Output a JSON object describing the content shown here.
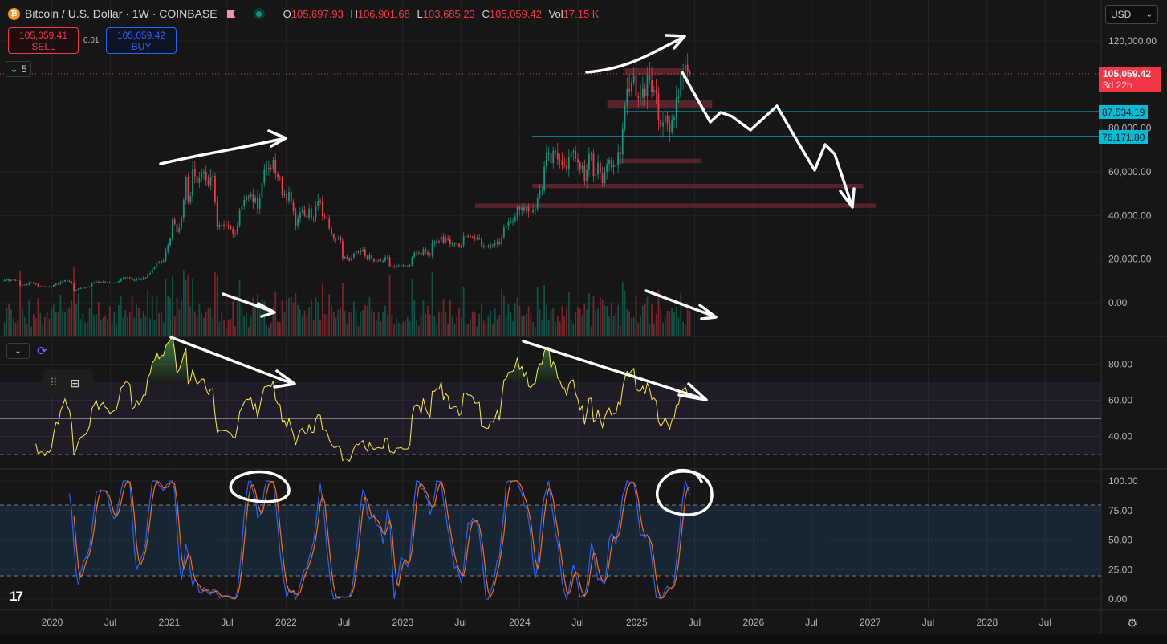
{
  "header": {
    "symbol_icon": "bitcoin-icon",
    "title": "Bitcoin / U.S. Dollar · 1W · COINBASE",
    "ohlc": {
      "o_label": "O",
      "open": "105,697.93",
      "h_label": "H",
      "high": "106,901.68",
      "l_label": "L",
      "low": "103,685.23",
      "c_label": "C",
      "close": "105,059.42",
      "vol_label": "Vol",
      "volume": "17.15 K"
    }
  },
  "trade": {
    "sell_price": "105,059.41",
    "sell_label": "SELL",
    "spread": "0.01",
    "buy_price": "105,059.42",
    "buy_label": "BUY"
  },
  "indicators_collapsed_count": "5",
  "currency": "USD",
  "last_price": {
    "value": "105,059.42",
    "countdown": "3d 22h"
  },
  "level_tags": [
    "87,534.19",
    "76,171.80"
  ],
  "colors": {
    "up": "#089981",
    "down": "#f23645",
    "rsi": "#ffeb3b",
    "stoch_k": "#2962ff",
    "stoch_d": "#ff6d00",
    "level_line": "#00bcd4",
    "zone": "#8b2f3a",
    "background": "#161616"
  },
  "chart_data": {
    "type": "candlestick",
    "interval": "1W",
    "price_axis": {
      "ticks": [
        "120,000.00",
        "80,000.00",
        "60,000.00",
        "40,000.00",
        "20,000.00",
        "0.00"
      ],
      "tick_values": [
        120000,
        80000,
        60000,
        40000,
        20000,
        0
      ],
      "range": [
        0,
        120000
      ]
    },
    "time_axis": {
      "ticks": [
        "2020",
        "Jul",
        "2021",
        "Jul",
        "2022",
        "Jul",
        "2023",
        "Jul",
        "2024",
        "Jul",
        "2025",
        "Jul",
        "2026",
        "Jul",
        "2027",
        "Jul",
        "2028",
        "Jul"
      ],
      "tick_dates": [
        "2020-01-01",
        "2020-07-01",
        "2021-01-01",
        "2021-07-01",
        "2022-01-01",
        "2022-07-01",
        "2023-01-01",
        "2023-07-01",
        "2024-01-01",
        "2024-07-01",
        "2025-01-01",
        "2025-07-01",
        "2026-01-01",
        "2026-07-01",
        "2027-01-01",
        "2027-07-01",
        "2028-01-01",
        "2028-07-01"
      ]
    },
    "weekly_close_thousands": [
      10.3,
      10.9,
      10.1,
      10.4,
      10.5,
      10.3,
      10.0,
      8.0,
      8.2,
      8.3,
      8.2,
      9.2,
      9.2,
      8.8,
      8.5,
      7.4,
      7.5,
      7.5,
      7.1,
      7.3,
      7.2,
      7.4,
      8.1,
      8.7,
      8.6,
      9.4,
      9.8,
      10.3,
      9.9,
      9.7,
      8.8,
      5.4,
      5.8,
      6.4,
      6.7,
      6.8,
      6.9,
      7.1,
      7.5,
      8.9,
      9.3,
      9.7,
      9.1,
      9.5,
      9.7,
      9.4,
      9.3,
      9.0,
      9.1,
      9.2,
      9.3,
      9.9,
      11.0,
      11.2,
      11.6,
      11.6,
      11.5,
      10.3,
      10.4,
      10.9,
      10.7,
      10.9,
      11.4,
      11.4,
      13.1,
      13.6,
      15.5,
      16.1,
      18.6,
      18.2,
      19.2,
      19.2,
      23.8,
      26.5,
      29.4,
      38.2,
      36.0,
      32.3,
      34.3,
      38.9,
      47.2,
      57.5,
      46.3,
      48.9,
      61.2,
      58.0,
      55.0,
      57.1,
      59.9,
      60.0,
      56.2,
      54.0,
      57.8,
      58.2,
      46.4,
      34.7,
      35.7,
      35.8,
      35.5,
      35.5,
      34.7,
      34.0,
      31.8,
      31.5,
      35.4,
      42.2,
      44.6,
      47.1,
      48.9,
      48.8,
      49.9,
      46.0,
      48.3,
      43.2,
      48.2,
      54.9,
      60.9,
      61.3,
      61.8,
      61.5,
      65.5,
      59.0,
      57.3,
      57.0,
      49.4,
      50.1,
      46.7,
      50.8,
      46.2,
      42.0,
      35.1,
      38.5,
      41.5,
      42.4,
      40.0,
      39.1,
      43.2,
      39.0,
      38.8,
      44.5,
      46.8,
      46.4,
      39.7,
      39.4,
      38.5,
      34.1,
      31.3,
      29.4,
      29.5,
      29.9,
      28.4,
      20.5,
      21.0,
      20.5,
      19.3,
      20.8,
      22.5,
      23.6,
      23.3,
      23.9,
      24.3,
      21.5,
      20.0,
      21.8,
      20.1,
      19.0,
      19.3,
      19.4,
      19.2,
      19.2,
      20.8,
      20.8,
      16.8,
      16.7,
      16.4,
      17.1,
      17.1,
      17.2,
      16.8,
      16.8,
      16.8,
      17.2,
      20.9,
      22.8,
      23.0,
      22.9,
      21.8,
      24.6,
      23.2,
      22.3,
      21.8,
      27.5,
      27.5,
      28.3,
      28.2,
      30.3,
      27.6,
      29.3,
      28.9,
      26.8,
      26.9,
      27.2,
      27.1,
      25.8,
      26.3,
      30.5,
      30.6,
      30.3,
      30.3,
      30.1,
      29.3,
      29.3,
      29.4,
      26.1,
      26.0,
      25.8,
      25.8,
      26.6,
      26.5,
      27.0,
      27.9,
      26.8,
      30.0,
      34.5,
      35.0,
      37.1,
      37.4,
      37.5,
      39.5,
      43.8,
      42.3,
      43.6,
      42.3,
      43.9,
      41.8,
      41.6,
      42.6,
      43.0,
      48.3,
      51.6,
      51.7,
      62.4,
      68.4,
      68.4,
      64.0,
      69.7,
      68.9,
      65.7,
      64.9,
      63.1,
      63.0,
      61.0,
      67.0,
      69.0,
      69.6,
      66.0,
      64.3,
      61.0,
      62.7,
      55.9,
      60.8,
      68.2,
      68.3,
      58.1,
      58.7,
      64.2,
      59.1,
      54.8,
      60.0,
      63.6,
      65.6,
      62.1,
      63.0,
      62.9,
      69.0,
      68.0,
      79.6,
      90.5,
      98.0,
      97.0,
      101.0,
      104.0,
      95.0,
      93.7,
      94.0,
      98.0,
      94.5,
      104.5,
      102.0,
      96.5,
      97.5,
      96.1,
      84.0,
      80.7,
      82.6,
      86.0,
      82.3,
      78.4,
      83.7,
      85.0,
      93.8,
      94.3,
      104.1,
      106.5,
      109.0,
      105.7,
      105.06
    ],
    "last_candle": {
      "open": 105697.93,
      "high": 106901.68,
      "low": 103685.23,
      "close": 105059.42
    },
    "horizontal_levels": [
      87534.19,
      76171.8
    ],
    "zones": [
      {
        "from": "2024-11-25",
        "to": "2025-05-25",
        "low": 104500,
        "high": 107500
      },
      {
        "from": "2024-10-01",
        "to": "2025-08-25",
        "low": 89000,
        "high": 93000
      },
      {
        "from": "2024-11-01",
        "to": "2025-07-20",
        "low": 64000,
        "high": 66000
      },
      {
        "from": "2024-02-10",
        "to": "2026-12-10",
        "low": 52500,
        "high": 54500
      },
      {
        "from": "2023-08-15",
        "to": "2027-01-20",
        "low": 43500,
        "high": 45500
      }
    ],
    "rsi_pane": {
      "ticks": [
        "80.00",
        "60.00",
        "40.00"
      ],
      "tick_values": [
        80,
        60,
        40
      ],
      "upper_band": 70,
      "middle": 50,
      "lower_band": 30,
      "length": 14
    },
    "stoch_rsi_pane": {
      "ticks": [
        "100.00",
        "75.00",
        "50.00",
        "25.00",
        "0.00"
      ],
      "tick_values": [
        100,
        75,
        50,
        25,
        0
      ],
      "upper_band": 80,
      "lower_band": 20,
      "k": 3,
      "d": 3,
      "rsi_length": 14,
      "stoch_length": 14
    }
  }
}
